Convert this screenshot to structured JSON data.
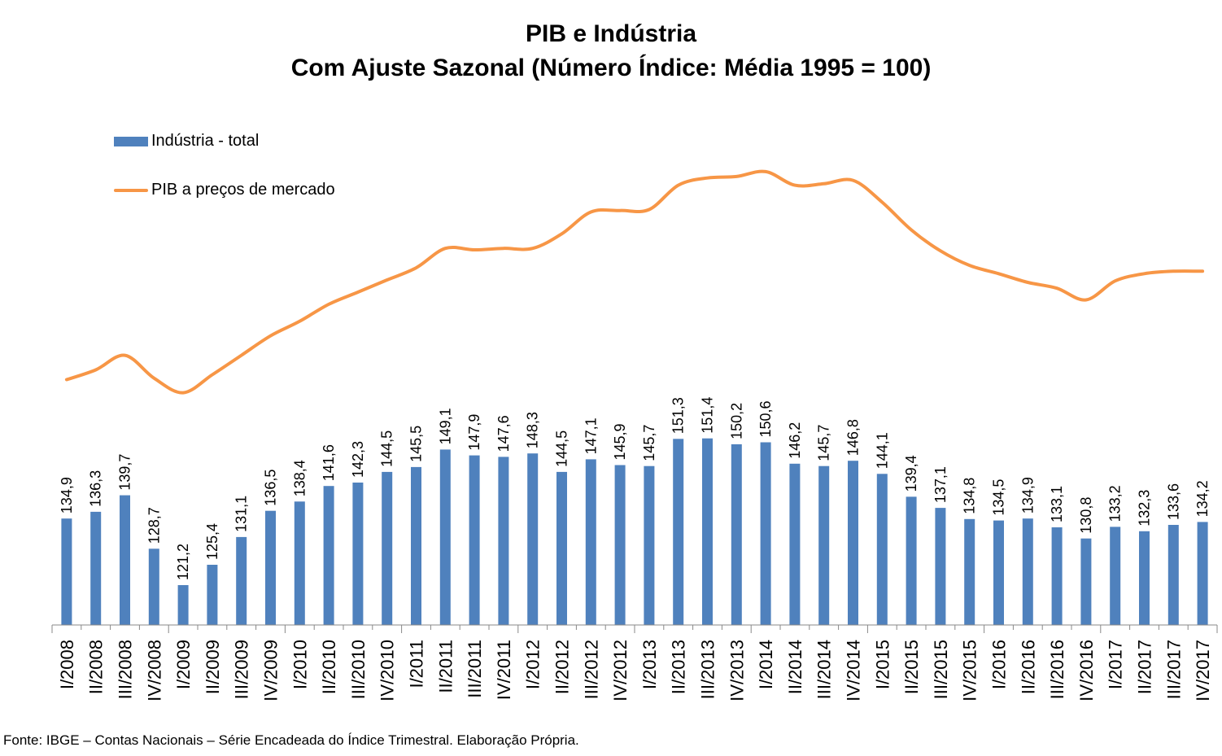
{
  "title_line1": "PIB e Indústria",
  "title_line2": "Com Ajuste Sazonal (Número Índice: Média 1995 = 100)",
  "source": "Fonte: IBGE – Contas Nacionais – Série Encadeada do Índice Trimestral. Elaboração Própria.",
  "colors": {
    "bar": "#4f81bd",
    "line": "#f79646"
  },
  "chart_data": {
    "type": "bar",
    "title": "PIB e Indústria — Com Ajuste Sazonal (Número Índice: Média 1995 = 100)",
    "legend_position": "top-left",
    "grid": false,
    "categories": [
      "I/2008",
      "II/2008",
      "III/2008",
      "IV/2008",
      "I/2009",
      "II/2009",
      "III/2009",
      "IV/2009",
      "I/2010",
      "II/2010",
      "III/2010",
      "IV/2010",
      "I/2011",
      "II/2011",
      "III/2011",
      "IV/2011",
      "I/2012",
      "II/2012",
      "III/2012",
      "IV/2012",
      "I/2013",
      "II/2013",
      "III/2013",
      "IV/2013",
      "I/2014",
      "II/2014",
      "III/2014",
      "IV/2014",
      "I/2015",
      "II/2015",
      "III/2015",
      "IV/2015",
      "I/2016",
      "II/2016",
      "III/2016",
      "IV/2016",
      "I/2017",
      "II/2017",
      "III/2017",
      "IV/2017"
    ],
    "series": [
      {
        "name": "Indústria - total",
        "type": "bar",
        "values": [
          134.9,
          136.3,
          139.7,
          128.7,
          121.2,
          125.4,
          131.1,
          136.5,
          138.4,
          141.6,
          142.3,
          144.5,
          145.5,
          149.1,
          147.9,
          147.6,
          148.3,
          144.5,
          147.1,
          145.9,
          145.7,
          151.3,
          151.4,
          150.2,
          150.6,
          146.2,
          145.7,
          146.8,
          144.1,
          139.4,
          137.1,
          134.8,
          134.5,
          134.9,
          133.1,
          130.8,
          133.2,
          132.3,
          133.6,
          134.2
        ],
        "labels": [
          "134,9",
          "136,3",
          "139,7",
          "128,7",
          "121,2",
          "125,4",
          "131,1",
          "136,5",
          "138,4",
          "141,6",
          "142,3",
          "144,5",
          "145,5",
          "149,1",
          "147,9",
          "147,6",
          "148,3",
          "144,5",
          "147,1",
          "145,9",
          "145,7",
          "151,3",
          "151,4",
          "150,2",
          "150,6",
          "146,2",
          "145,7",
          "146,8",
          "144,1",
          "139,4",
          "137,1",
          "134,8",
          "134,5",
          "134,9",
          "133,1",
          "130,8",
          "133,2",
          "132,3",
          "133,6",
          "134,2"
        ]
      },
      {
        "name": "PIB a preços de mercado",
        "type": "line",
        "values": [
          163.5,
          165.5,
          168.5,
          163.8,
          160.8,
          164.5,
          168.5,
          172.5,
          175.5,
          179.0,
          181.5,
          184.0,
          186.5,
          190.5,
          190.2,
          190.5,
          190.5,
          193.5,
          198.0,
          198.3,
          198.5,
          203.5,
          205.0,
          205.3,
          206.3,
          203.5,
          203.8,
          204.5,
          200.0,
          194.3,
          190.0,
          187.0,
          185.3,
          183.5,
          182.3,
          179.9,
          183.8,
          185.3,
          185.8,
          185.8
        ]
      }
    ],
    "ylim": [
      113,
      217
    ]
  }
}
